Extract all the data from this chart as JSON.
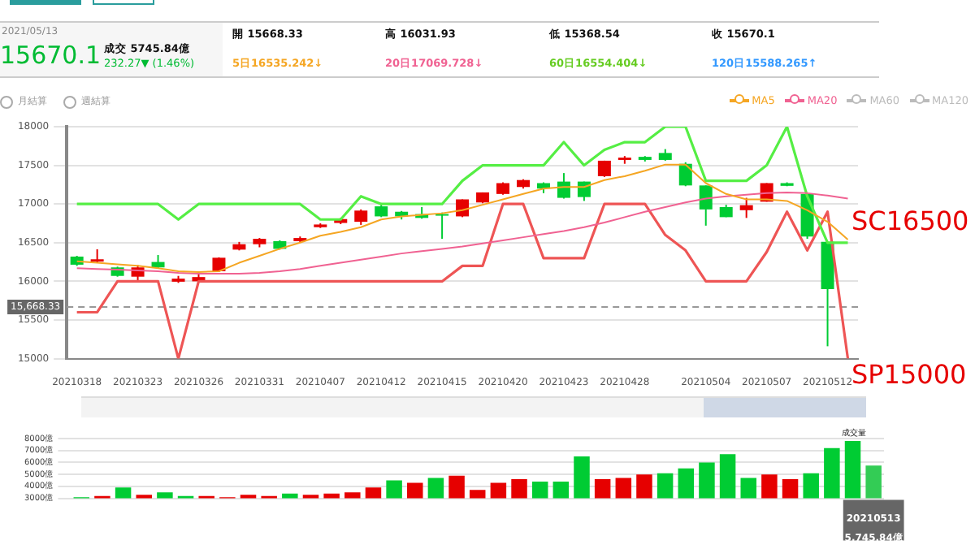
{
  "chart_data": [
    {
      "type": "candlestick",
      "categories": [
        "20210318",
        null,
        null,
        "20210323",
        null,
        null,
        "20210326",
        null,
        null,
        "20210331",
        null,
        null,
        "20210407",
        null,
        null,
        "20210412",
        null,
        null,
        "20210415",
        null,
        null,
        "20210420",
        null,
        null,
        "20210423",
        null,
        null,
        "20210428",
        null,
        null,
        null,
        "20210504",
        null,
        null,
        "20210507",
        null,
        null,
        "20210512",
        null
      ],
      "ohlc": [
        [
          16320,
          16330,
          16200,
          16215
        ],
        [
          16255,
          16415,
          16240,
          16285
        ],
        [
          16180,
          16190,
          16060,
          16070
        ],
        [
          16060,
          16210,
          15990,
          16180
        ],
        [
          16250,
          16340,
          16170,
          16180
        ],
        [
          15995,
          16070,
          15980,
          16035
        ],
        [
          16000,
          16100,
          15990,
          16055
        ],
        [
          16130,
          16310,
          16120,
          16305
        ],
        [
          16410,
          16510,
          16400,
          16480
        ],
        [
          16480,
          16560,
          16440,
          16550
        ],
        [
          16520,
          16530,
          16410,
          16420
        ],
        [
          16520,
          16580,
          16500,
          16560
        ],
        [
          16700,
          16750,
          16690,
          16735
        ],
        [
          16755,
          16820,
          16740,
          16805
        ],
        [
          16770,
          16930,
          16730,
          16915
        ],
        [
          16970,
          16990,
          16830,
          16840
        ],
        [
          16900,
          16910,
          16800,
          16840
        ],
        [
          16870,
          16960,
          16810,
          16820
        ],
        [
          16870,
          16890,
          16550,
          16860
        ],
        [
          16840,
          17060,
          16830,
          17060
        ],
        [
          17020,
          17150,
          17010,
          17150
        ],
        [
          17130,
          17280,
          17120,
          17270
        ],
        [
          17220,
          17320,
          17200,
          17310
        ],
        [
          17270,
          17280,
          17140,
          17200
        ],
        [
          17290,
          17400,
          17070,
          17080
        ],
        [
          17290,
          17290,
          17040,
          17090
        ],
        [
          17360,
          17560,
          17350,
          17560
        ],
        [
          17570,
          17620,
          17520,
          17600
        ],
        [
          17610,
          17620,
          17550,
          17570
        ],
        [
          17660,
          17710,
          17560,
          17570
        ],
        [
          17520,
          17540,
          17230,
          17240
        ],
        [
          17240,
          17240,
          16720,
          16930
        ],
        [
          16960,
          16990,
          16830,
          16830
        ],
        [
          16920,
          17080,
          16820,
          16985
        ],
        [
          17030,
          17270,
          17030,
          17270
        ],
        [
          17270,
          17280,
          17230,
          17235
        ],
        [
          17130,
          17130,
          16550,
          16580
        ],
        [
          16510,
          16510,
          15160,
          15900
        ],
        null
      ],
      "colors": [
        "#00cc33",
        "#e60000",
        "#00cc33",
        "#e60000",
        "#00cc33",
        "#e60000",
        "#e60000",
        "#e60000",
        "#e60000",
        "#e60000",
        "#00cc33",
        "#e60000",
        "#e60000",
        "#e60000",
        "#e60000",
        "#00cc33",
        "#00cc33",
        "#00cc33",
        "#00cc33",
        "#e60000",
        "#e60000",
        "#e60000",
        "#e60000",
        "#00cc33",
        "#00cc33",
        "#00cc33",
        "#e60000",
        "#e60000",
        "#00cc33",
        "#00cc33",
        "#00cc33",
        "#00cc33",
        "#00cc33",
        "#e60000",
        "#e60000",
        "#00cc33",
        "#00cc33",
        "#00cc33",
        null
      ],
      "series": [
        {
          "type": "line",
          "name": "MA5",
          "color": "#f5a623",
          "values": [
            16260,
            16240,
            16220,
            16200,
            16170,
            16130,
            16120,
            16130,
            16240,
            16330,
            16420,
            16500,
            16590,
            16640,
            16700,
            16800,
            16840,
            16860,
            16880,
            16920,
            16990,
            17060,
            17130,
            17200,
            17220,
            17220,
            17310,
            17360,
            17430,
            17510,
            17510,
            17270,
            17130,
            17060,
            17060,
            17040,
            16920,
            16770,
            16540
          ]
        },
        {
          "type": "line",
          "name": "MA20",
          "color": "#f06292",
          "values": [
            16170,
            16160,
            16150,
            16140,
            16130,
            16110,
            16100,
            16100,
            16100,
            16110,
            16130,
            16160,
            16200,
            16240,
            16280,
            16320,
            16360,
            16390,
            16420,
            16450,
            16490,
            16530,
            16570,
            16610,
            16650,
            16700,
            16760,
            16830,
            16900,
            16960,
            17020,
            17070,
            17100,
            17120,
            17140,
            17150,
            17140,
            17110,
            17070
          ]
        },
        {
          "type": "line",
          "color": "#55ee44",
          "values": [
            17000,
            17000,
            17000,
            17000,
            17000,
            16800,
            17000,
            17000,
            17000,
            17000,
            17000,
            17000,
            16800,
            16800,
            17100,
            17000,
            17000,
            17000,
            17000,
            17300,
            17500,
            17500,
            17500,
            17500,
            17800,
            17500,
            17700,
            17800,
            17800,
            18000,
            18000,
            17300,
            17300,
            17300,
            17500,
            18000,
            17100,
            16500,
            16500
          ]
        },
        {
          "type": "line",
          "color": "#ee5555",
          "values": [
            15600,
            15600,
            16000,
            16000,
            16000,
            15000,
            16000,
            16000,
            16000,
            16000,
            16000,
            16000,
            16000,
            16000,
            16000,
            16000,
            16000,
            16000,
            16000,
            16200,
            16200,
            17000,
            17000,
            16300,
            16300,
            16300,
            17000,
            17000,
            17000,
            16600,
            16400,
            16000,
            16000,
            16000,
            16380,
            16900,
            16400,
            16900,
            15000
          ]
        }
      ],
      "ylim": [
        15000,
        18000
      ],
      "yticks": [
        15000,
        15500,
        16000,
        16500,
        17000,
        17500,
        18000
      ],
      "grid": "y",
      "legend": "top right",
      "ref_lines": [
        {
          "axis": "y",
          "value": 15668.33,
          "label": "15,668.33",
          "color": "#999999",
          "line_style": "dashed"
        }
      ],
      "annotations": [
        "2021/05/13",
        "15670.1",
        "成交 5745.84億",
        "232.27▼ (1.46%)",
        "開 15668.33",
        "高 16031.93",
        "低 15368.54",
        "收 15670.1",
        "5日16535.242↓",
        "20日17069.728↓",
        "60日16554.404↓",
        "120日15588.265↑",
        "月結算",
        "週結算",
        "MA60",
        "MA120",
        "SC16500",
        "SP15000"
      ]
    },
    {
      "type": "bar",
      "categories": [
        null,
        null,
        null,
        null,
        null,
        null,
        null,
        null,
        null,
        null,
        null,
        null,
        null,
        null,
        null,
        null,
        null,
        null,
        null,
        null,
        null,
        null,
        null,
        null,
        null,
        null,
        null,
        null,
        null,
        null,
        null,
        null,
        null,
        null,
        null,
        null,
        null,
        null,
        "20210513"
      ],
      "values": [
        3100,
        3200,
        3900,
        3300,
        3500,
        3200,
        3200,
        3100,
        3300,
        3200,
        3400,
        3300,
        3400,
        3500,
        3900,
        4500,
        4300,
        4700,
        4900,
        3700,
        4300,
        4600,
        4400,
        4400,
        6500,
        4600,
        4700,
        5000,
        5100,
        5500,
        6000,
        6700,
        4700,
        5000,
        4600,
        5100,
        7200,
        7800,
        5745.84
      ],
      "colors": [
        "#00cc33",
        "#e60000",
        "#00cc33",
        "#e60000",
        "#00cc33",
        "#00cc33",
        "#e60000",
        "#e60000",
        "#e60000",
        "#e60000",
        "#00cc33",
        "#e60000",
        "#e60000",
        "#e60000",
        "#e60000",
        "#00cc33",
        "#e60000",
        "#00cc33",
        "#e60000",
        "#e60000",
        "#e60000",
        "#e60000",
        "#00cc33",
        "#00cc33",
        "#00cc33",
        "#e60000",
        "#e60000",
        "#e60000",
        "#00cc33",
        "#00cc33",
        "#00cc33",
        "#00cc33",
        "#00cc33",
        "#e60000",
        "#e60000",
        "#00cc33",
        "#00cc33",
        "#00cc33",
        "#33cc55"
      ],
      "ylim": [
        3000,
        8000
      ],
      "yticks": [
        {
          "value": 3000,
          "label": "3000億"
        },
        {
          "value": 4000,
          "label": "4000億"
        },
        {
          "value": 5000,
          "label": "5000億"
        },
        {
          "value": 6000,
          "label": "6000億"
        },
        {
          "value": 7000,
          "label": "7000億"
        },
        {
          "value": 8000,
          "label": "8000億"
        }
      ],
      "grid": "y",
      "annotations": [
        "成交量",
        "5,745.84億"
      ]
    }
  ]
}
